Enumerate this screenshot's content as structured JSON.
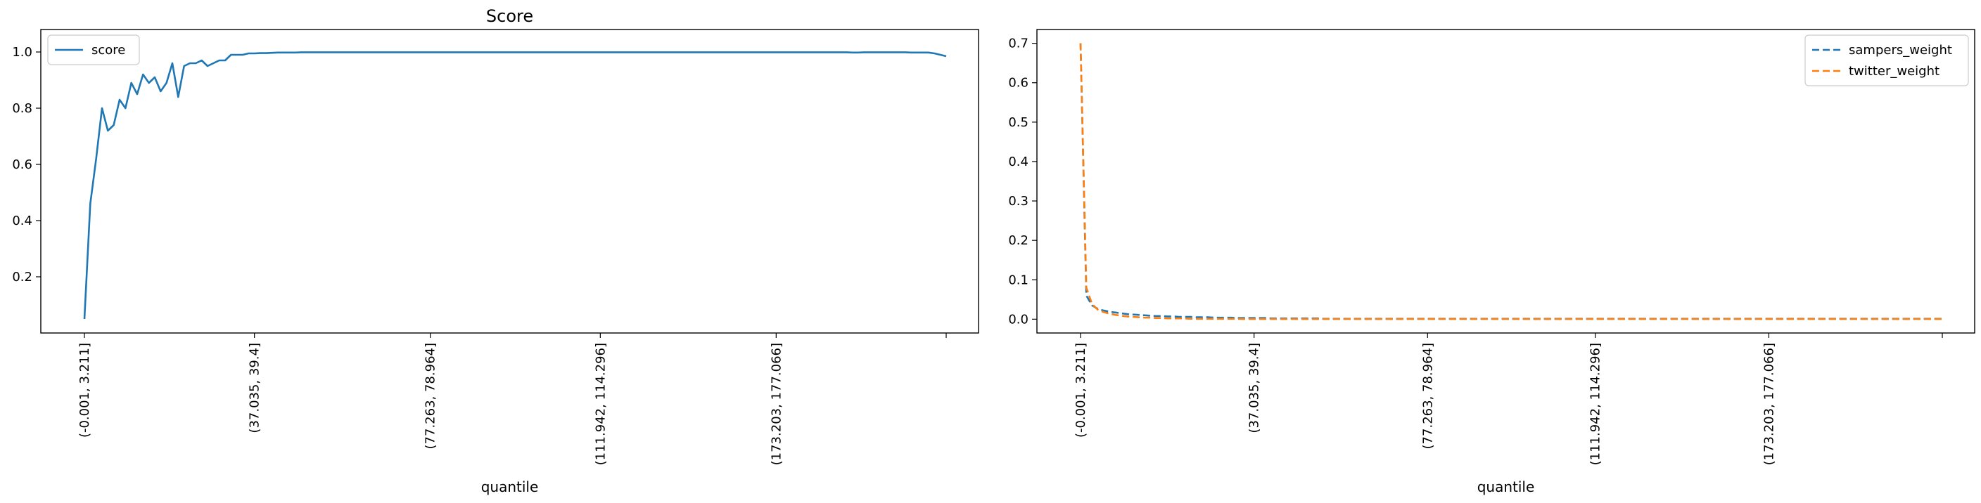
{
  "chart_data": [
    {
      "type": "line",
      "title": "Score",
      "xlabel": "quantile",
      "ylabel": "",
      "xticks": [
        "(-0.001, 3.211]",
        "(37.035, 39.4]",
        "(77.263, 78.964]",
        "(111.942, 114.296]",
        "(173.203, 177.066]",
        ""
      ],
      "ylim": [
        0.0,
        1.08
      ],
      "yticks": [
        0.2,
        0.4,
        0.6,
        0.8,
        1.0
      ],
      "legend_position": "top-left",
      "series": [
        {
          "name": "score",
          "color": "#1f77b4",
          "style": "solid",
          "values": [
            0.05,
            0.46,
            0.62,
            0.8,
            0.72,
            0.74,
            0.83,
            0.8,
            0.89,
            0.85,
            0.92,
            0.89,
            0.91,
            0.86,
            0.89,
            0.96,
            0.84,
            0.95,
            0.96,
            0.96,
            0.97,
            0.95,
            0.96,
            0.97,
            0.97,
            0.99,
            0.99,
            0.99,
            0.995,
            0.995,
            0.996,
            0.996,
            0.997,
            0.998,
            0.998,
            0.998,
            0.998,
            0.999,
            0.999,
            0.999,
            0.999,
            0.999,
            0.999,
            0.999,
            0.999,
            0.999,
            0.999,
            0.999,
            0.999,
            0.999,
            0.999,
            0.999,
            0.999,
            0.999,
            0.999,
            0.999,
            0.999,
            0.999,
            0.999,
            0.999,
            0.999,
            0.999,
            0.999,
            0.999,
            0.999,
            0.999,
            0.999,
            0.999,
            0.999,
            0.999,
            0.999,
            0.999,
            0.999,
            0.999,
            0.999,
            0.999,
            0.999,
            0.999,
            0.999,
            0.999,
            0.999,
            0.999,
            0.999,
            0.999,
            0.999,
            0.999,
            0.999,
            0.999,
            0.999,
            0.999,
            0.999,
            0.999,
            0.999,
            0.999,
            0.999,
            0.999,
            0.999,
            0.999,
            0.999,
            0.999,
            0.999,
            0.999,
            0.999,
            0.999,
            0.999,
            0.999,
            0.999,
            0.999,
            0.999,
            0.999,
            0.999,
            0.999,
            0.999,
            0.999,
            0.999,
            0.999,
            0.999,
            0.999,
            0.999,
            0.999,
            0.999,
            0.999,
            0.999,
            0.999,
            0.999,
            0.999,
            0.999,
            0.999,
            0.999,
            0.999,
            0.999,
            0.998,
            0.998,
            0.999,
            0.999,
            0.999,
            0.999,
            0.999,
            0.999,
            0.999,
            0.999,
            0.998,
            0.998,
            0.998,
            0.998,
            0.995,
            0.99,
            0.985
          ]
        }
      ]
    },
    {
      "type": "line",
      "title": "",
      "xlabel": "quantile",
      "ylabel": "",
      "xticks": [
        "(-0.001, 3.211]",
        "(37.035, 39.4]",
        "(77.263, 78.964]",
        "(111.942, 114.296]",
        "(173.203, 177.066]",
        ""
      ],
      "ylim": [
        -0.035,
        0.735
      ],
      "yticks": [
        0.0,
        0.1,
        0.2,
        0.3,
        0.4,
        0.5,
        0.6,
        0.7
      ],
      "legend_position": "top-right",
      "series": [
        {
          "name": "sampers_weight",
          "color": "#1f77b4",
          "style": "dashed",
          "values": [
            0.7,
            0.06,
            0.035,
            0.026,
            0.022,
            0.019,
            0.017,
            0.015,
            0.013,
            0.012,
            0.011,
            0.01,
            0.009,
            0.008,
            0.008,
            0.007,
            0.007,
            0.006,
            0.006,
            0.006,
            0.005,
            0.005,
            0.005,
            0.004,
            0.004,
            0.004,
            0.004,
            0.003,
            0.003,
            0.003,
            0.003,
            0.003,
            0.003,
            0.002,
            0.002,
            0.002,
            0.002,
            0.002,
            0.002,
            0.002,
            0.002,
            0.002,
            0.001,
            0.001,
            0.001,
            0.001,
            0.001,
            0.001,
            0.001,
            0.001,
            0.001,
            0.001,
            0.001,
            0.001,
            0.001,
            0.001,
            0.001,
            0.001,
            0.001,
            0.001,
            0.001,
            0.001,
            0.001,
            0.001,
            0.001,
            0.001,
            0.001,
            0.001,
            0.001,
            0.001,
            0.001,
            0.001,
            0.001,
            0.001,
            0.001,
            0.001,
            0.001,
            0.001,
            0.001,
            0.001,
            0.001,
            0.001,
            0.001,
            0.001,
            0.001,
            0.001,
            0.001,
            0.001,
            0.001,
            0.001,
            0.001,
            0.001,
            0.001,
            0.001,
            0.001,
            0.001,
            0.001,
            0.001,
            0.001,
            0.001,
            0.001,
            0.001,
            0.001,
            0.001,
            0.001,
            0.001,
            0.001,
            0.001,
            0.001,
            0.001,
            0.001,
            0.001,
            0.001,
            0.001,
            0.001,
            0.001,
            0.001,
            0.001,
            0.001,
            0.001,
            0.001,
            0.001,
            0.001,
            0.001,
            0.001,
            0.001,
            0.001,
            0.001,
            0.001,
            0.001,
            0.001,
            0.001,
            0.001,
            0.001,
            0.001,
            0.001,
            0.001,
            0.001,
            0.001,
            0.001,
            0.001,
            0.001,
            0.001,
            0.001,
            0.001,
            0.001,
            0.001,
            0.001,
            0.001,
            0.001
          ]
        },
        {
          "name": "twitter_weight",
          "color": "#ff7f0e",
          "style": "dashed",
          "values": [
            0.7,
            0.08,
            0.038,
            0.024,
            0.018,
            0.014,
            0.011,
            0.009,
            0.007,
            0.006,
            0.005,
            0.004,
            0.004,
            0.003,
            0.003,
            0.002,
            0.002,
            0.002,
            0.002,
            0.001,
            0.001,
            0.001,
            0.001,
            0.001,
            0.001,
            0.001,
            0.001,
            0.001,
            0.0005,
            0.0005,
            0.0005,
            0.0005,
            0.0005,
            0.0005,
            0.0005,
            0.0005,
            0.0005,
            0.0005,
            0.0005,
            0.0005,
            0.0005,
            0.0005,
            0.0005,
            0.0005,
            0.0005,
            0.0005,
            0.0005,
            0.0005,
            0.0005,
            0.0005,
            0.0005,
            0.0005,
            0.0005,
            0.0005,
            0.0005,
            0.0005,
            0.0005,
            0.0005,
            0.0005,
            0.0005,
            0.0005,
            0.0005,
            0.0005,
            0.0005,
            0.0005,
            0.0005,
            0.0005,
            0.0005,
            0.0005,
            0.0005,
            0.0005,
            0.0005,
            0.0005,
            0.0005,
            0.0005,
            0.0005,
            0.0005,
            0.0005,
            0.0005,
            0.0005,
            0.0005,
            0.0005,
            0.0005,
            0.0005,
            0.0005,
            0.0005,
            0.0005,
            0.0005,
            0.0005,
            0.0005,
            0.0005,
            0.0005,
            0.0005,
            0.0005,
            0.0005,
            0.0005,
            0.0005,
            0.0005,
            0.0005,
            0.0005,
            0.0005,
            0.0005,
            0.0005,
            0.0005,
            0.0005,
            0.0005,
            0.0005,
            0.0005,
            0.0005,
            0.0005,
            0.0005,
            0.0005,
            0.0005,
            0.0005,
            0.0005,
            0.0005,
            0.0005,
            0.0005,
            0.0005,
            0.0005,
            0.0005,
            0.0005,
            0.0005,
            0.0005,
            0.0005,
            0.0005,
            0.0005,
            0.0005,
            0.0005,
            0.0005,
            0.0005,
            0.0005,
            0.0005,
            0.0005,
            0.0005,
            0.0005,
            0.0005,
            0.0005,
            0.0005,
            0.0005,
            0.0005,
            0.0005,
            0.0005,
            0.0005,
            0.0005,
            0.0005,
            0.0005,
            0.0005,
            0.0005,
            0.0005
          ]
        }
      ]
    }
  ]
}
